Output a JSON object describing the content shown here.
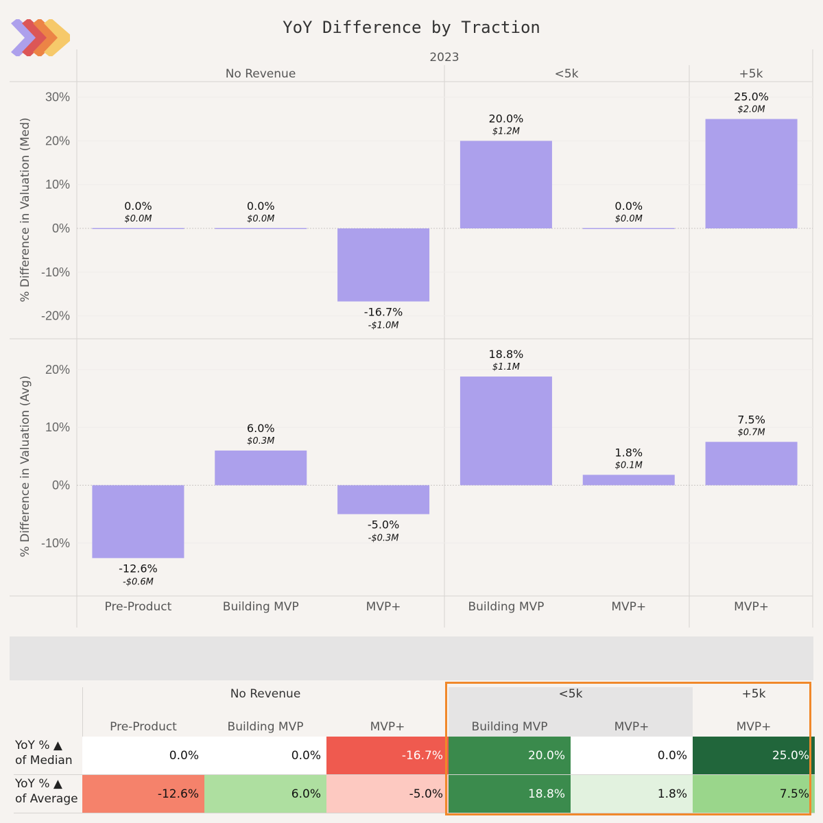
{
  "title": "YoY Difference by Traction",
  "logo": {
    "icon": "chevron-stack-logo-icon",
    "colors": [
      "#ada0ec",
      "#dc5656",
      "#ec8446",
      "#f6c96a"
    ]
  },
  "colors": {
    "bar": "#aca0ec",
    "background": "#f6f3f0",
    "highlight_border": "#f0882a",
    "band": "#e5e4e4"
  },
  "chart_data": [
    {
      "type": "bar",
      "title": "YoY Difference by Traction",
      "year_header": "2023",
      "groups": [
        {
          "name": "No Revenue",
          "categories": [
            "Pre-Product",
            "Building MVP",
            "MVP+"
          ]
        },
        {
          "name": "<5k",
          "categories": [
            "Building MVP",
            "MVP+"
          ]
        },
        {
          "name": "+5k",
          "categories": [
            "MVP+"
          ]
        }
      ],
      "categories": [
        "Pre-Product",
        "Building MVP",
        "MVP+",
        "Building MVP",
        "MVP+",
        "MVP+"
      ],
      "ylabel": "% Difference in Valuation (Med)",
      "ylim": [
        -25,
        33
      ],
      "yticks": [
        30,
        20,
        10,
        0,
        -10,
        -20
      ],
      "ytick_labels": [
        "30%",
        "20%",
        "10%",
        "0%",
        "-10%",
        "-20%"
      ],
      "values": [
        0.0,
        0.0,
        -16.7,
        20.0,
        0.0,
        25.0
      ],
      "labels_pct": [
        "0.0%",
        "0.0%",
        "-16.7%",
        "20.0%",
        "0.0%",
        "25.0%"
      ],
      "labels_usd": [
        "$0.0M",
        "$0.0M",
        "-$1.0M",
        "$1.2M",
        "$0.0M",
        "$2.0M"
      ],
      "grid": true
    },
    {
      "type": "bar",
      "categories": [
        "Pre-Product",
        "Building MVP",
        "MVP+",
        "Building MVP",
        "MVP+",
        "MVP+"
      ],
      "ylabel": "% Difference in Valuation (Avg)",
      "ylim": [
        -19,
        24
      ],
      "yticks": [
        20,
        10,
        0,
        -10
      ],
      "ytick_labels": [
        "20%",
        "10%",
        "0%",
        "-10%"
      ],
      "values": [
        -12.6,
        6.0,
        -5.0,
        18.8,
        1.8,
        7.5
      ],
      "labels_pct": [
        "-12.6%",
        "6.0%",
        "-5.0%",
        "18.8%",
        "1.8%",
        "7.5%"
      ],
      "labels_usd": [
        "-$0.6M",
        "$0.3M",
        "-$0.3M",
        "$1.1M",
        "$0.1M",
        "$0.7M"
      ],
      "grid": true
    }
  ],
  "table": {
    "group_headers": [
      "No Revenue",
      "<5k",
      "+5k"
    ],
    "column_headers": [
      "Pre-Product",
      "Building MVP",
      "MVP+",
      "Building MVP",
      "MVP+",
      "MVP+"
    ],
    "rows": [
      {
        "label_line1": "YoY % ▲",
        "label_line2": "of Median",
        "cells": [
          {
            "text": "0.0%",
            "bg": "#ffffff",
            "fg": "#111111"
          },
          {
            "text": "0.0%",
            "bg": "#ffffff",
            "fg": "#111111"
          },
          {
            "text": "-16.7%",
            "bg": "#ef5a4f",
            "fg": "#ffffff"
          },
          {
            "text": "20.0%",
            "bg": "#3a8a4c",
            "fg": "#ffffff"
          },
          {
            "text": "0.0%",
            "bg": "#ffffff",
            "fg": "#111111"
          },
          {
            "text": "25.0%",
            "bg": "#21663b",
            "fg": "#ffffff"
          }
        ]
      },
      {
        "label_line1": "YoY % ▲",
        "label_line2": "of Average",
        "cells": [
          {
            "text": "-12.6%",
            "bg": "#f5826b",
            "fg": "#111111"
          },
          {
            "text": "6.0%",
            "bg": "#aedfa0",
            "fg": "#111111"
          },
          {
            "text": "-5.0%",
            "bg": "#fdc9c1",
            "fg": "#111111"
          },
          {
            "text": "18.8%",
            "bg": "#3b8b4d",
            "fg": "#ffffff"
          },
          {
            "text": "1.8%",
            "bg": "#e2f2df",
            "fg": "#111111"
          },
          {
            "text": "7.5%",
            "bg": "#9ad68b",
            "fg": "#111111"
          }
        ]
      }
    ]
  }
}
